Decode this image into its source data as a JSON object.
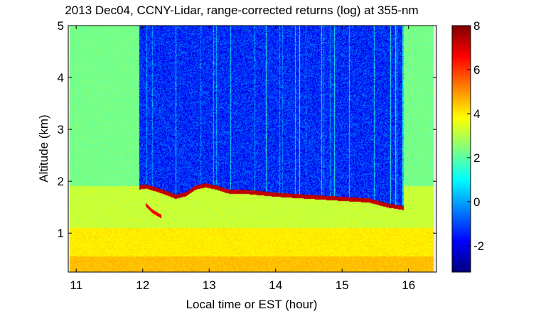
{
  "chart_data": {
    "type": "heatmap",
    "title": "2013 Dec04, CCNY-Lidar, range-corrected returns (log) at 355-nm",
    "xlabel": "Local time or EST (hour)",
    "ylabel": "Altitude (km)",
    "xlim": [
      10.88,
      16.42
    ],
    "ylim": [
      0.25,
      5.0
    ],
    "x_ticks": [
      11,
      12,
      13,
      14,
      15,
      16
    ],
    "y_ticks": [
      1,
      2,
      3,
      4,
      5
    ],
    "colorbar": {
      "colormap": "jet",
      "range": [
        -3.2,
        8
      ],
      "ticks": [
        -2,
        0,
        2,
        4,
        6,
        8
      ]
    },
    "data_extent": {
      "time_start": 10.9,
      "time_end": 16.38
    },
    "clear_air_start": 11.95,
    "clear_air_end": 15.93,
    "layer_top": [
      [
        11.95,
        1.88
      ],
      [
        12.05,
        1.9
      ],
      [
        12.15,
        1.86
      ],
      [
        12.3,
        1.8
      ],
      [
        12.5,
        1.7
      ],
      [
        12.65,
        1.75
      ],
      [
        12.8,
        1.88
      ],
      [
        12.95,
        1.92
      ],
      [
        13.1,
        1.88
      ],
      [
        13.3,
        1.8
      ],
      [
        13.6,
        1.79
      ],
      [
        14.0,
        1.74
      ],
      [
        14.5,
        1.7
      ],
      [
        15.0,
        1.66
      ],
      [
        15.4,
        1.63
      ],
      [
        15.7,
        1.53
      ],
      [
        16.0,
        1.47
      ]
    ],
    "lower_layer": [
      [
        12.05,
        1.55
      ],
      [
        12.15,
        1.42
      ],
      [
        12.28,
        1.32
      ]
    ],
    "value_regions": [
      {
        "name": "boundary-layer-upper",
        "alt_range": [
          1.1,
          1.95
        ],
        "value": 3.2
      },
      {
        "name": "boundary-layer-lower",
        "alt_range": [
          0.25,
          1.1
        ],
        "value": 4.0
      },
      {
        "name": "near-surface",
        "alt_range": [
          0.25,
          0.55
        ],
        "value": 4.5
      },
      {
        "name": "free-troposphere-clear",
        "alt_range": [
          1.9,
          5.0
        ],
        "value": -1.4
      },
      {
        "name": "free-troposphere-cloudy",
        "alt_range": [
          1.9,
          5.0
        ],
        "value": 2.3
      },
      {
        "name": "aerosol-layer-top",
        "value": 7.3
      }
    ]
  }
}
